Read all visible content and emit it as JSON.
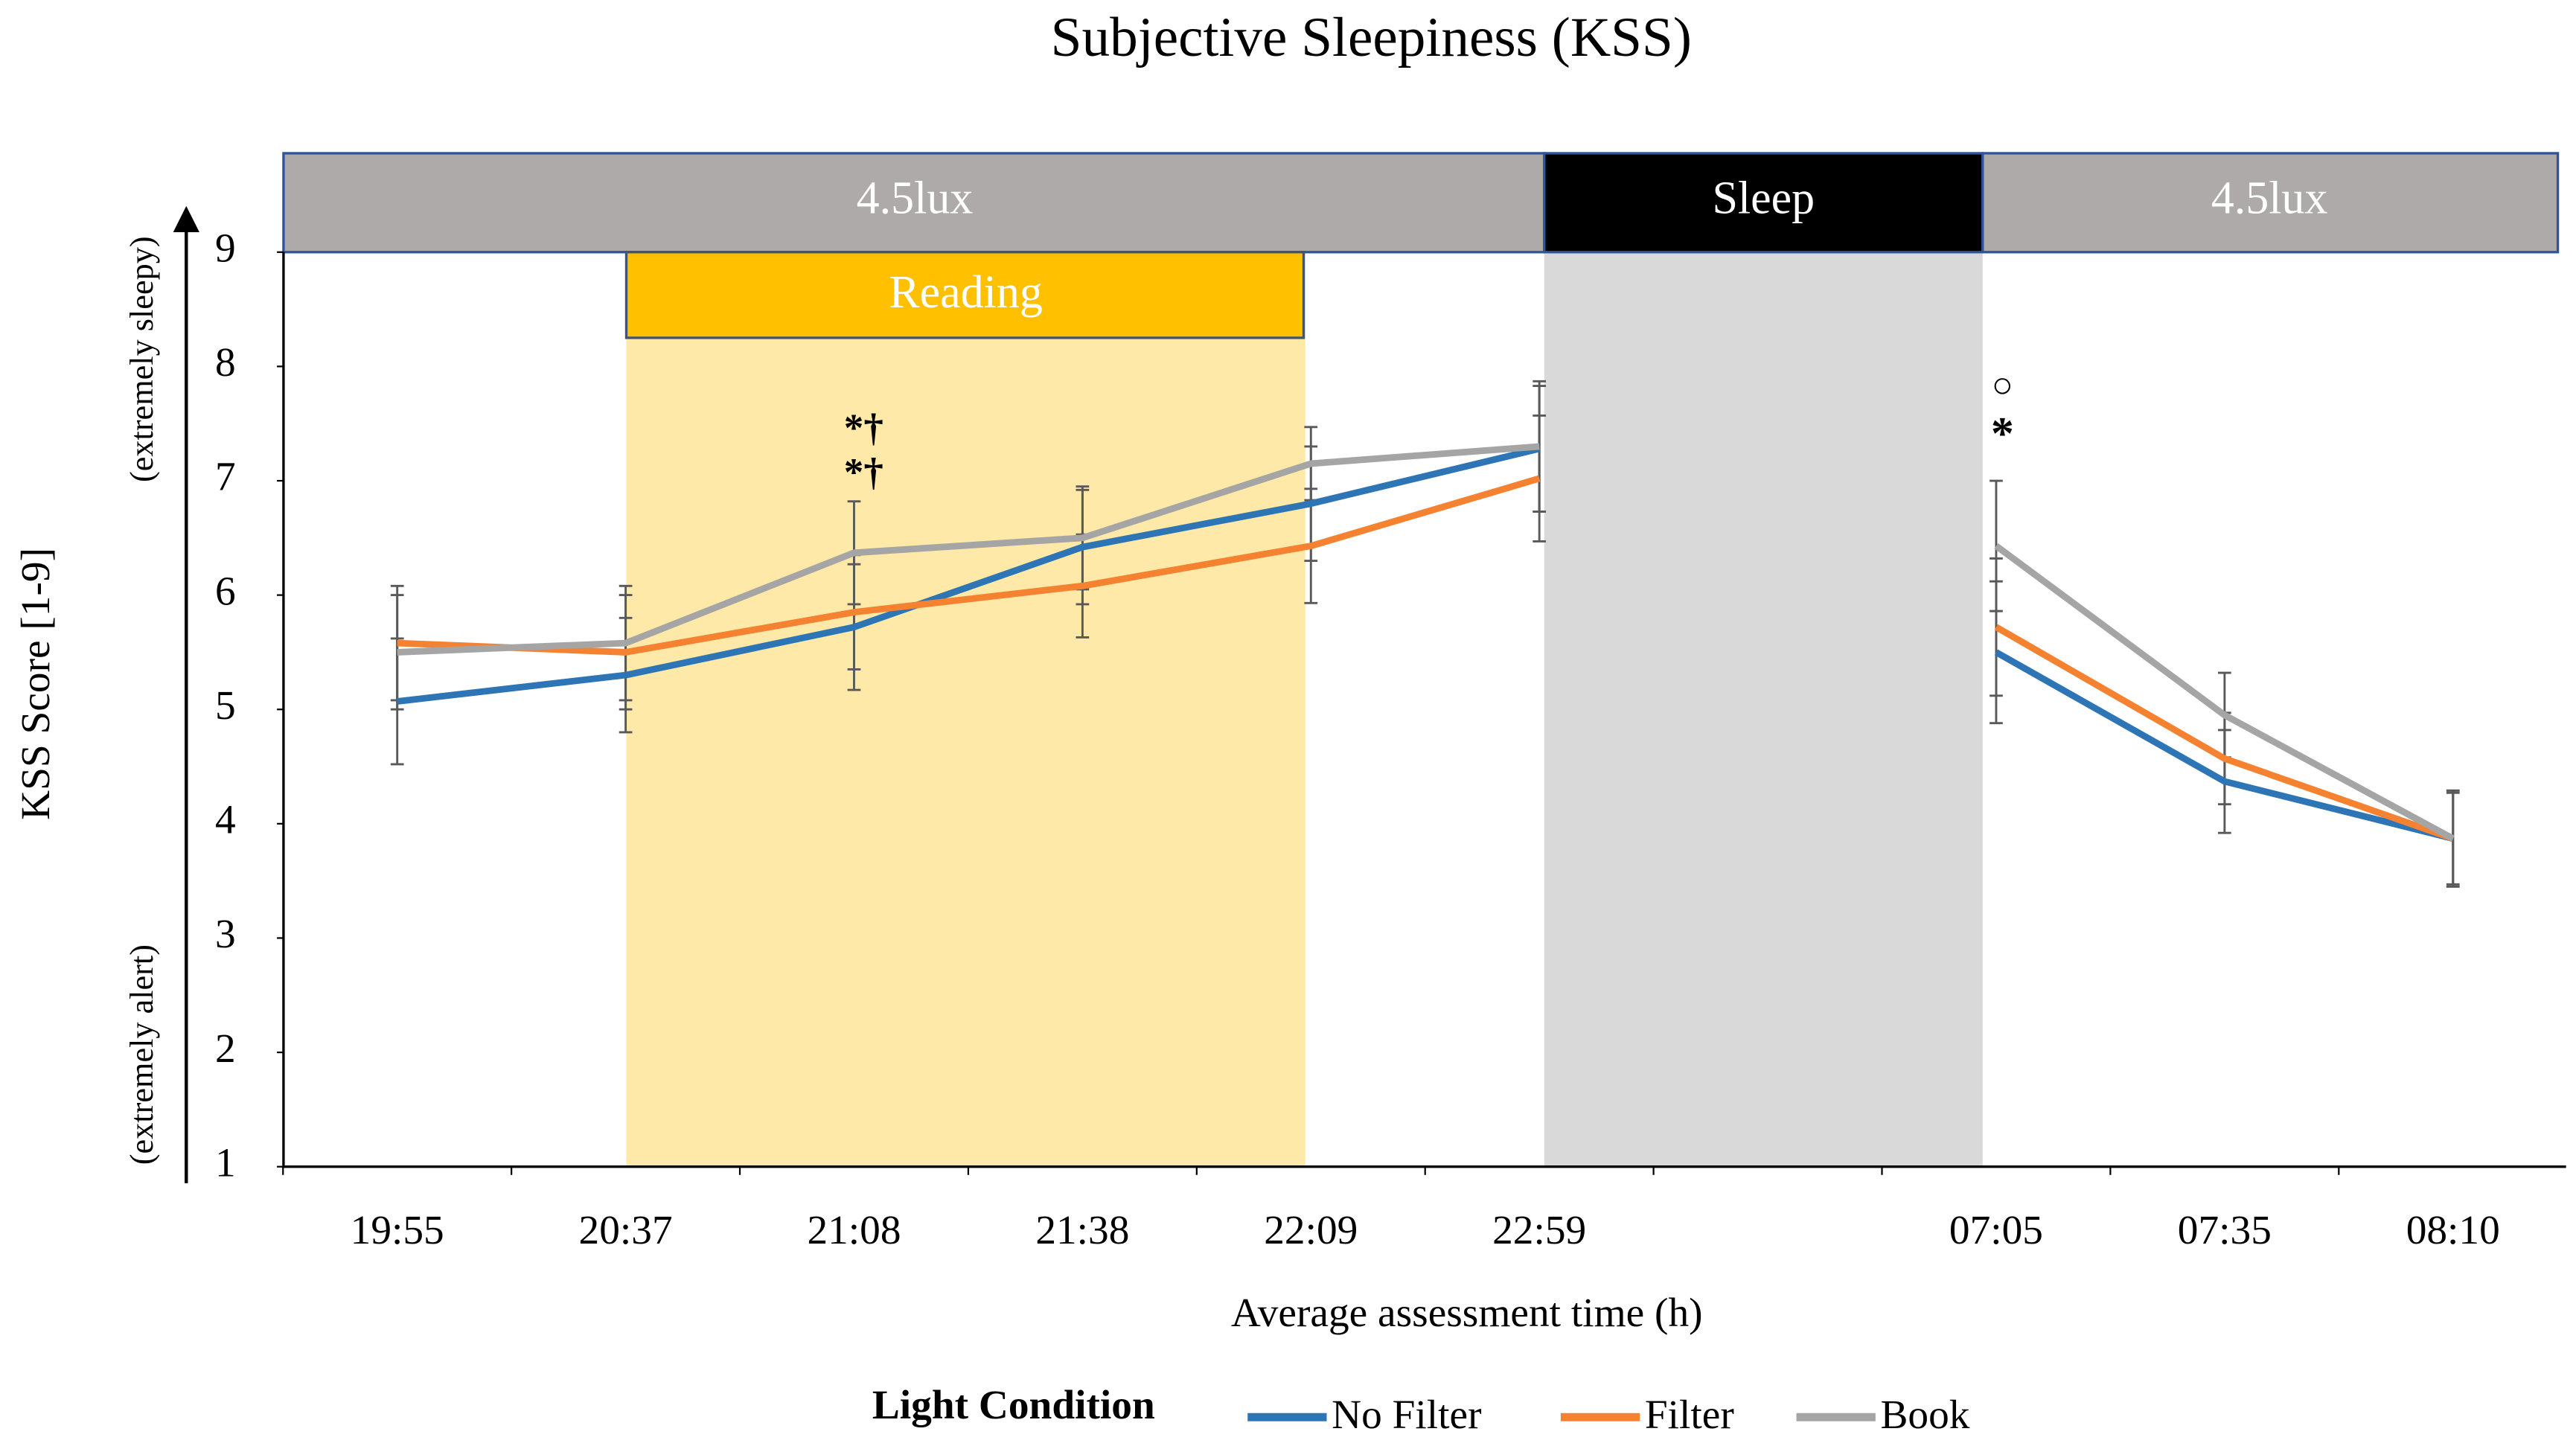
{
  "chart_data": {
    "type": "line",
    "title": "Subjective Sleepiness (KSS)",
    "x_label": "Average assessment time (h)",
    "y_label": "KSS Score [1-9]",
    "y_top_note": "(extremely sleepy)",
    "y_bottom_note": "(extremely alert)",
    "phases": [
      "4.5lux",
      "Sleep",
      "4.5lux"
    ],
    "reading_label": "Reading",
    "annotations": [
      "*†",
      "*†",
      "○",
      "*"
    ],
    "legend_title": "Light Condition",
    "categories": [
      "19:55",
      "20:37",
      "21:08",
      "21:38",
      "22:09",
      "22:59",
      null,
      "07:05",
      "07:35",
      "08:10"
    ],
    "ylim": [
      1,
      9
    ],
    "yticks": [
      1,
      2,
      3,
      4,
      5,
      6,
      7,
      8,
      9
    ],
    "series": [
      {
        "name": "No Filter",
        "color": "#2e75b6",
        "values": [
          5.07,
          5.3,
          5.72,
          6.42,
          6.8,
          7.28,
          null,
          5.5,
          4.37,
          3.87
        ],
        "errors": [
          0.55,
          0.5,
          0.55,
          0.5,
          0.5,
          0.55,
          null,
          0.62,
          0.45,
          0.42
        ]
      },
      {
        "name": "Filter",
        "color": "#f58231",
        "values": [
          5.58,
          5.5,
          5.85,
          6.08,
          6.43,
          7.02,
          null,
          5.72,
          4.57,
          3.87
        ],
        "errors": [
          0.5,
          0.5,
          0.5,
          0.45,
          0.5,
          0.55,
          null,
          0.6,
          0.4,
          0.4
        ]
      },
      {
        "name": "Book",
        "color": "#a5a5a5",
        "values": [
          5.5,
          5.58,
          6.37,
          6.5,
          7.15,
          7.3,
          null,
          6.43,
          4.95,
          3.87
        ],
        "errors": [
          0.5,
          0.5,
          0.45,
          0.45,
          0.32,
          0.57,
          null,
          0.57,
          0.37,
          0.42
        ]
      }
    ]
  }
}
